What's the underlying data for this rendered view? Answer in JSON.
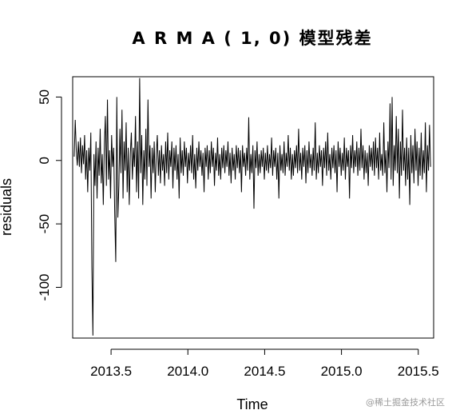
{
  "chart_data": {
    "type": "line",
    "title": "A R M A ( 1, 0) 模型残差",
    "xlabel": "Time",
    "ylabel": "residuals",
    "xlim": [
      2013.25,
      2015.6
    ],
    "ylim": [
      -140,
      66
    ],
    "x_ticks": [
      2013.5,
      2014.0,
      2014.5,
      2015.0,
      2015.5
    ],
    "x_tick_labels": [
      "2013.5",
      "2014.0",
      "2014.5",
      "2015.0",
      "2015.5"
    ],
    "y_ticks": [
      50,
      0,
      -50,
      -100
    ],
    "y_tick_labels": [
      "50",
      "0",
      "-50",
      "-100"
    ],
    "grid": false,
    "line_color": "#000000",
    "series": [
      {
        "x_start": 2013.26,
        "x_end": 2015.58,
        "values": [
          3,
          32,
          8,
          -4,
          15,
          -5,
          18,
          -10,
          12,
          -3,
          20,
          -15,
          8,
          -25,
          10,
          -8,
          22,
          -84,
          -138,
          5,
          -20,
          15,
          -30,
          10,
          -12,
          25,
          -18,
          5,
          -35,
          12,
          35,
          -20,
          48,
          -15,
          8,
          -30,
          20,
          -5,
          10,
          -42,
          -80,
          50,
          -45,
          -20,
          25,
          -10,
          40,
          -30,
          15,
          -8,
          30,
          -25,
          10,
          -35,
          5,
          22,
          -15,
          10,
          -5,
          35,
          -25,
          15,
          -30,
          65,
          -10,
          20,
          -35,
          8,
          -15,
          25,
          -20,
          48,
          -5,
          12,
          -30,
          10,
          -10,
          15,
          -25,
          5,
          20,
          -12,
          8,
          -18,
          12,
          -8,
          5,
          -20,
          15,
          -10,
          22,
          -15,
          8,
          -5,
          15,
          -22,
          10,
          -8,
          12,
          -15,
          5,
          -30,
          18,
          -10,
          8,
          -12,
          15,
          -5,
          10,
          -18,
          6,
          -8,
          12,
          -10,
          20,
          -15,
          5,
          -22,
          10,
          -8,
          15,
          -5,
          8,
          -12,
          6,
          -25,
          10,
          -5,
          12,
          -15,
          8,
          -10,
          15,
          -5,
          10,
          -20,
          6,
          -8,
          18,
          -12,
          5,
          -15,
          10,
          -6,
          12,
          -10,
          8,
          -5,
          15,
          -12,
          6,
          -18,
          10,
          -8,
          5,
          -15,
          12,
          -6,
          10,
          -10,
          8,
          -25,
          12,
          -5,
          6,
          -12,
          10,
          -8,
          34,
          -15,
          5,
          -10,
          12,
          -38,
          8,
          -6,
          15,
          -12,
          5,
          -10,
          8,
          -5,
          10,
          -15,
          6,
          -8,
          12,
          -10,
          5,
          -6,
          18,
          -12,
          8,
          -5,
          10,
          -15,
          6,
          -30,
          12,
          -8,
          5,
          -10,
          15,
          -12,
          6,
          -5,
          20,
          -8,
          10,
          -15,
          5,
          -12,
          8,
          -6,
          12,
          -10,
          25,
          -8,
          6,
          -15,
          10,
          -5,
          12,
          -18,
          8,
          -10,
          15,
          -6,
          5,
          -12,
          10,
          -8,
          30,
          -15,
          6,
          -10,
          12,
          -5,
          8,
          -20,
          10,
          -6,
          15,
          -12,
          22,
          -8,
          5,
          -15,
          10,
          -6,
          12,
          -10,
          8,
          -25,
          15,
          -5,
          10,
          -12,
          6,
          -8,
          18,
          -15,
          10,
          -5,
          8,
          -30,
          12,
          -6,
          20,
          -10,
          8,
          -5,
          15,
          -12,
          10,
          -8,
          25,
          -6,
          12,
          -15,
          8,
          -10,
          6,
          -20,
          12,
          -5,
          10,
          -8,
          15,
          -12,
          18,
          -6,
          10,
          -15,
          22,
          -8,
          5,
          -12,
          30,
          -10,
          8,
          -25,
          15,
          -6,
          45,
          -15,
          50,
          -20,
          12,
          -8,
          35,
          -10,
          25,
          -30,
          15,
          -12,
          40,
          -8,
          10,
          -20,
          18,
          -15,
          10,
          -35,
          20,
          -10,
          12,
          -18,
          25,
          -8,
          15,
          -20,
          10,
          -12,
          22,
          -15,
          8,
          -10,
          30,
          -25,
          12,
          -8,
          28,
          -5
        ]
      }
    ]
  },
  "watermark": "@稀土掘金技术社区"
}
